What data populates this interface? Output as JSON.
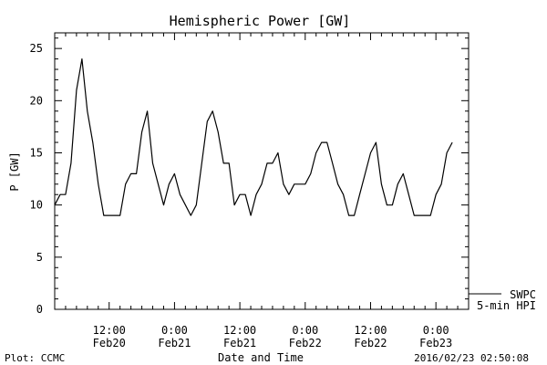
{
  "chart_data": {
    "type": "line",
    "title": "Hemispheric Power [GW]",
    "xlabel": "Date and Time",
    "ylabel": "P [GW]",
    "ylim": [
      0,
      26.5
    ],
    "yticks": [
      0,
      5,
      10,
      15,
      20,
      25
    ],
    "xlim": [
      "2016-02-20 02:00",
      "2016-02-23 06:00"
    ],
    "xticks": [
      {
        "x": "2016-02-20 12:00",
        "time": "12:00",
        "date": "Feb20"
      },
      {
        "x": "2016-02-21 00:00",
        "time": "0:00",
        "date": "Feb21"
      },
      {
        "x": "2016-02-21 12:00",
        "time": "12:00",
        "date": "Feb21"
      },
      {
        "x": "2016-02-22 00:00",
        "time": "0:00",
        "date": "Feb22"
      },
      {
        "x": "2016-02-22 12:00",
        "time": "12:00",
        "date": "Feb22"
      },
      {
        "x": "2016-02-23 00:00",
        "time": "0:00",
        "date": "Feb23"
      }
    ],
    "grid": false,
    "series": [
      {
        "name": "SWPC 5-min HPI",
        "color": "#000000",
        "x": [
          "2016-02-20 02:00",
          "2016-02-20 03:00",
          "2016-02-20 04:00",
          "2016-02-20 05:00",
          "2016-02-20 06:00",
          "2016-02-20 07:00",
          "2016-02-20 08:00",
          "2016-02-20 09:00",
          "2016-02-20 10:00",
          "2016-02-20 11:00",
          "2016-02-20 12:00",
          "2016-02-20 13:00",
          "2016-02-20 14:00",
          "2016-02-20 15:00",
          "2016-02-20 16:00",
          "2016-02-20 17:00",
          "2016-02-20 18:00",
          "2016-02-20 19:00",
          "2016-02-20 20:00",
          "2016-02-20 21:00",
          "2016-02-20 22:00",
          "2016-02-20 23:00",
          "2016-02-21 00:00",
          "2016-02-21 01:00",
          "2016-02-21 02:00",
          "2016-02-21 03:00",
          "2016-02-21 04:00",
          "2016-02-21 05:00",
          "2016-02-21 06:00",
          "2016-02-21 07:00",
          "2016-02-21 08:00",
          "2016-02-21 09:00",
          "2016-02-21 10:00",
          "2016-02-21 11:00",
          "2016-02-21 12:00",
          "2016-02-21 13:00",
          "2016-02-21 14:00",
          "2016-02-21 15:00",
          "2016-02-21 16:00",
          "2016-02-21 17:00",
          "2016-02-21 18:00",
          "2016-02-21 19:00",
          "2016-02-21 20:00",
          "2016-02-21 21:00",
          "2016-02-21 22:00",
          "2016-02-21 23:00",
          "2016-02-22 00:00",
          "2016-02-22 01:00",
          "2016-02-22 02:00",
          "2016-02-22 03:00",
          "2016-02-22 04:00",
          "2016-02-22 05:00",
          "2016-02-22 06:00",
          "2016-02-22 07:00",
          "2016-02-22 08:00",
          "2016-02-22 09:00",
          "2016-02-22 10:00",
          "2016-02-22 11:00",
          "2016-02-22 12:00",
          "2016-02-22 13:00",
          "2016-02-22 14:00",
          "2016-02-22 15:00",
          "2016-02-22 16:00",
          "2016-02-22 17:00",
          "2016-02-22 18:00",
          "2016-02-22 19:00",
          "2016-02-22 20:00",
          "2016-02-22 21:00",
          "2016-02-22 22:00",
          "2016-02-22 23:00",
          "2016-02-23 00:00",
          "2016-02-23 01:00",
          "2016-02-23 02:00",
          "2016-02-23 03:00"
        ],
        "values": [
          10,
          11,
          11,
          14,
          21,
          24,
          19,
          16,
          12,
          9,
          9,
          9,
          9,
          12,
          13,
          13,
          17,
          19,
          14,
          12,
          10,
          12,
          13,
          11,
          10,
          9,
          10,
          14,
          18,
          19,
          17,
          14,
          14,
          10,
          11,
          11,
          9,
          11,
          12,
          14,
          14,
          15,
          12,
          11,
          12,
          12,
          12,
          13,
          15,
          16,
          16,
          14,
          12,
          11,
          9,
          9,
          11,
          13,
          15,
          16,
          12,
          10,
          10,
          12,
          13,
          11,
          9,
          9,
          9,
          9,
          11,
          12,
          15,
          16
        ]
      }
    ]
  },
  "footer": {
    "left": "Plot: CCMC",
    "right": "2016/02/23 02:50:08"
  },
  "legend": {
    "line1": "SWPC",
    "line2": "5-min HPI"
  }
}
